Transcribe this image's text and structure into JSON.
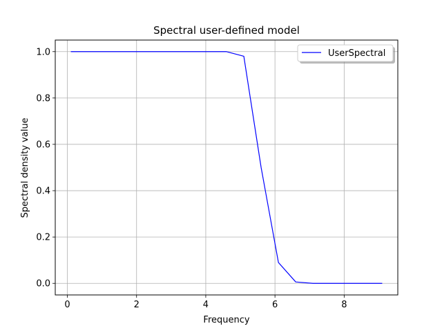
{
  "chart_data": {
    "type": "line",
    "title": "Spectral user-defined model",
    "xlabel": "Frequency",
    "ylabel": "Spectral density value",
    "xlim": [
      -0.35,
      9.55
    ],
    "ylim": [
      -0.05,
      1.05
    ],
    "xticks": [
      0,
      2,
      4,
      6,
      8
    ],
    "yticks": [
      0.0,
      0.2,
      0.4,
      0.6,
      0.8,
      1.0
    ],
    "xtick_labels": [
      "0",
      "2",
      "4",
      "6",
      "8"
    ],
    "ytick_labels": [
      "0.0",
      "0.2",
      "0.4",
      "0.6",
      "0.8",
      "1.0"
    ],
    "grid": true,
    "legend_position": "top-right",
    "series": [
      {
        "name": "UserSpectral",
        "color": "#0000ff",
        "x": [
          0.1,
          0.6,
          1.1,
          1.6,
          2.1,
          2.6,
          3.1,
          3.6,
          4.1,
          4.6,
          5.1,
          5.6,
          6.1,
          6.6,
          7.1,
          7.6,
          8.1,
          8.6,
          9.1
        ],
        "y": [
          1.0,
          1.0,
          1.0,
          1.0,
          1.0,
          1.0,
          1.0,
          1.0,
          1.0,
          1.0,
          0.98,
          0.5,
          0.09,
          0.006,
          0.0,
          0.0,
          0.0,
          0.0,
          0.0
        ]
      }
    ]
  }
}
